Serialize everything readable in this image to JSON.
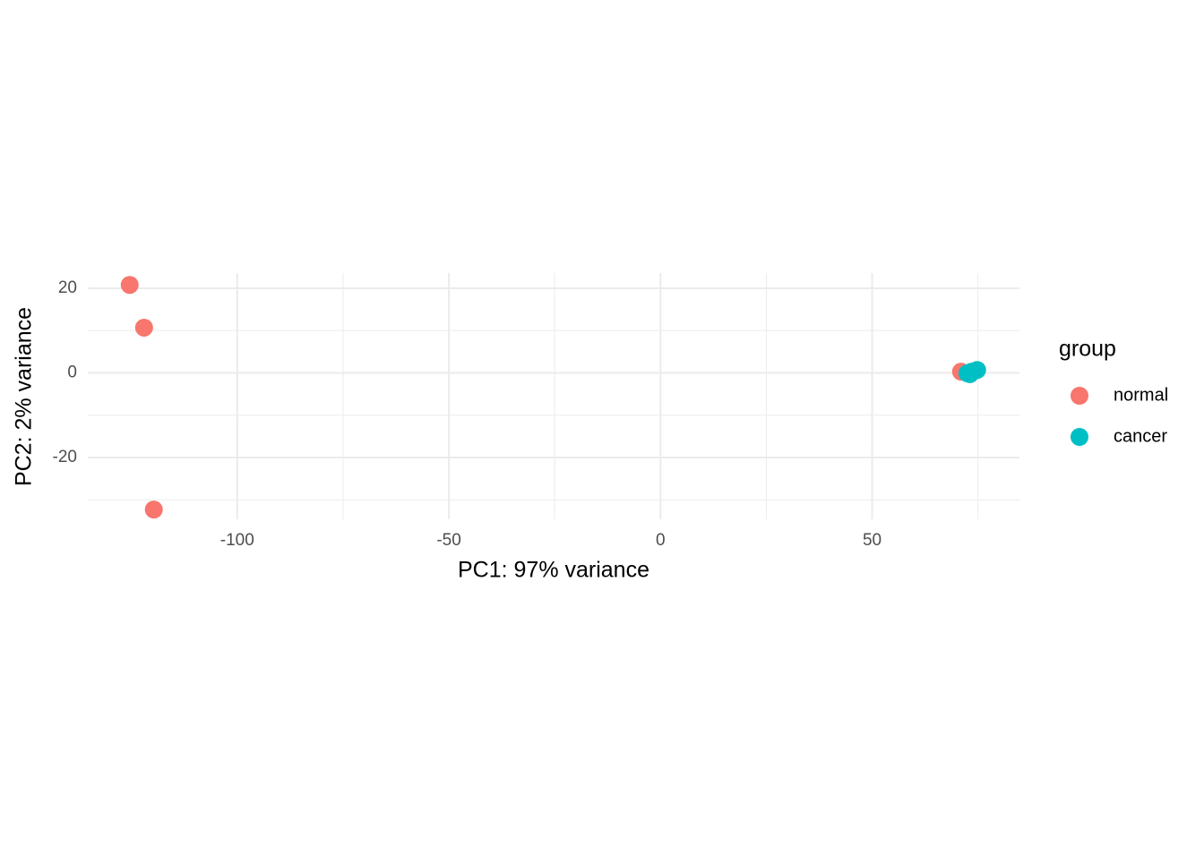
{
  "chart_data": {
    "type": "scatter",
    "x_label": "PC1: 97% variance",
    "y_label": "PC2: 2% variance",
    "legend_title": "group",
    "legend": "right",
    "xlim": [
      -135.3,
      84.8
    ],
    "ylim": [
      -34.6,
      23.6
    ],
    "xticks": [
      -100,
      -50,
      0,
      50
    ],
    "yticks": [
      -20,
      0,
      20
    ],
    "x_minor_ticks": [
      -75,
      -25,
      25,
      75
    ],
    "y_minor_ticks": [
      -30,
      -10,
      10
    ],
    "grid": true,
    "series": [
      {
        "name": "normal",
        "color": "#F8766D",
        "x": [
          -125.4,
          -122.0,
          -119.7,
          71.0
        ],
        "values": [
          20.8,
          10.7,
          -32.3,
          0.3
        ]
      },
      {
        "name": "cancer",
        "color": "#00BFC4",
        "x": [
          72.5,
          73.5,
          74.8,
          73.1
        ],
        "values": [
          -0.1,
          0.3,
          0.7,
          -0.3
        ]
      }
    ]
  }
}
